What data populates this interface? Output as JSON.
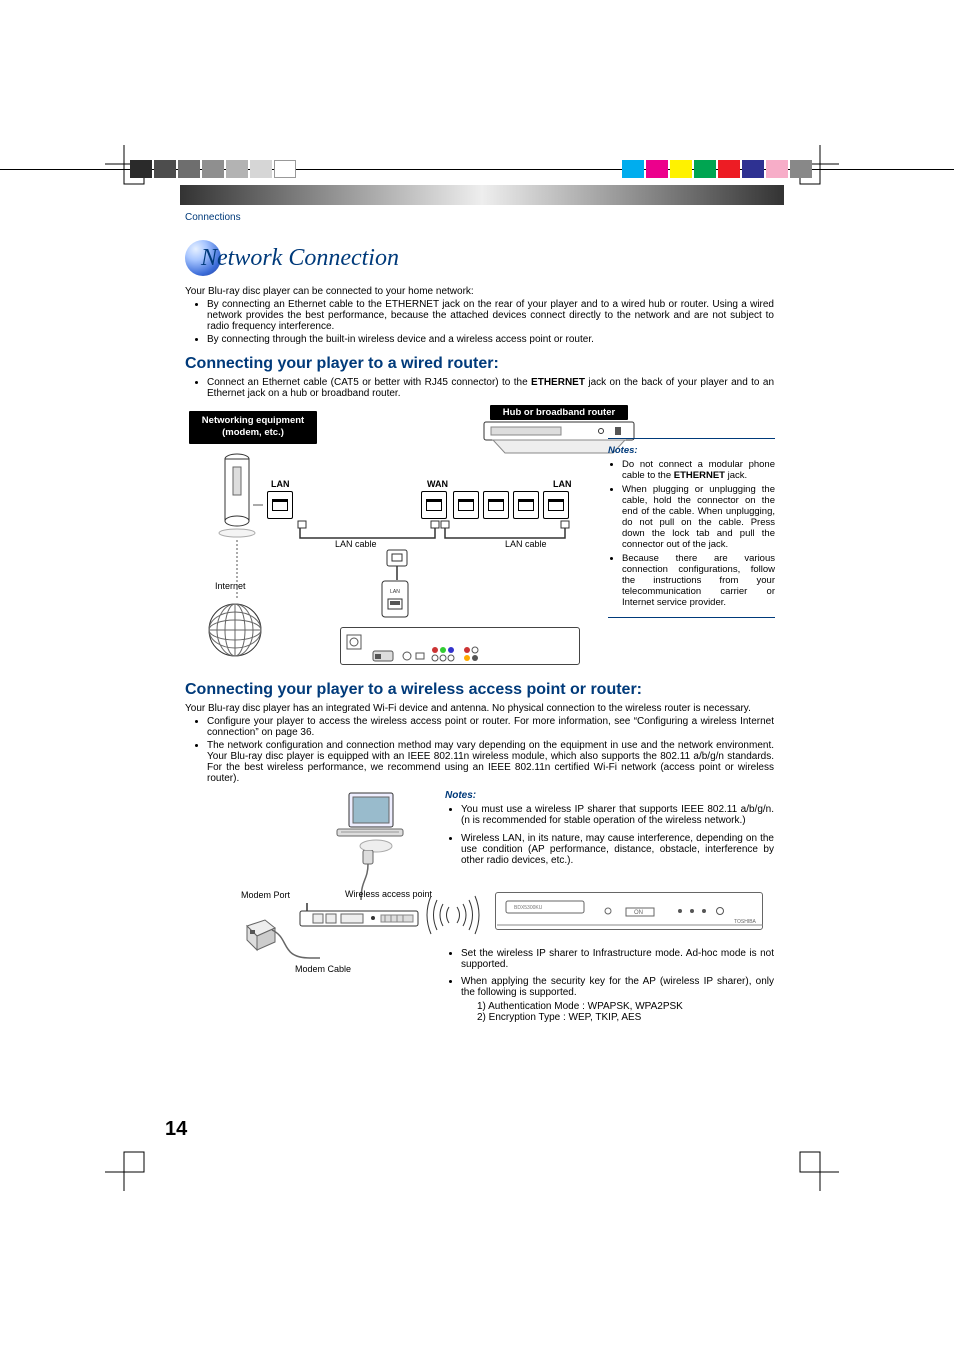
{
  "meta": {
    "page_number": "14",
    "breadcrumb": "Connections"
  },
  "colors": {
    "brand_blue": "#003a7a",
    "sphere_gradient": [
      "#e6f0ff",
      "#a8c6ff",
      "#3a6bd8",
      "#2a4aa8"
    ],
    "gray_squares": [
      "#2a2a2a",
      "#4d4d4d",
      "#6e6e6e",
      "#8f8f8f",
      "#b3b3b3",
      "#d6d6d6",
      "#ffffff"
    ],
    "color_squares": [
      "#00adee",
      "#ec008c",
      "#fff200",
      "#00a551",
      "#ed1c24",
      "#2e3192",
      "#f7adc8",
      "#888888"
    ]
  },
  "title": "Network Connection",
  "intro": {
    "lead": "Your Blu-ray disc player can be connected to your home network:",
    "bullets": [
      "By connecting an Ethernet cable to the ETHERNET jack on the rear of your player and to a wired hub or router. Using a wired network provides the best performance, because the attached devices connect directly to the network and are not subject to radio frequency interference.",
      "By connecting through the built-in wireless device and a wireless access point or router."
    ]
  },
  "wired": {
    "heading": "Connecting your player to a wired router:",
    "step_prefix": "Connect an Ethernet cable (CAT5 or better with RJ45 connector) to the ",
    "ethernet_word": "ETHERNET",
    "step_suffix": " jack on the back of your player and to an Ethernet jack on a hub or broadband router.",
    "labels": {
      "networking_equipment_l1": "Networking equipment",
      "networking_equipment_l2": "(modem, etc.)",
      "hub_router": "Hub or broadband router",
      "lan": "LAN",
      "wan": "WAN",
      "lan_cable": "LAN cable",
      "internet": "Internet"
    },
    "notes_title": "Notes:",
    "notes": [
      "Do not connect a modular phone cable to the <b>ETHERNET</b> jack.",
      "When plugging or unplugging the cable, hold the connector on the end of the cable. When unplugging, do not pull on the cable. Press down the lock tab and pull the connector out of the jack.",
      "Because there are various connection configurations, follow the instructions from your telecommunication carrier or Internet service provider."
    ]
  },
  "wireless": {
    "heading": "Connecting your player to a wireless access point or router:",
    "lead": "Your Blu-ray disc player has an integrated Wi-Fi device and antenna. No physical connection to the wireless router is necessary.",
    "bullets": [
      "Configure your player to access the wireless access point or router. For more information, see “Configuring a wireless Internet connection” on page 36.",
      "The network configuration and connection method may vary depending on the equipment in use and the network environment. Your Blu-ray disc player is equipped with an IEEE 802.11n wireless module, which also supports the 802.11 a/b/g/n standards. For the best wireless performance, we recommend using an IEEE 802.11n certified Wi-Fi network (access point or wireless router)."
    ],
    "labels": {
      "modem_port": "Modem Port",
      "wap": "Wireless access point",
      "modem_cable": "Modem Cable"
    },
    "notes_title": "Notes:",
    "notes1": [
      "You must use a wireless IP sharer that supports IEEE 802.11 a/b/g/n. (n is recommended for stable operation of the wireless network.)",
      "Wireless LAN, in its nature, may cause interference, depending on the use condition (AP performance, distance, obstacle, interference by other radio devices, etc.)."
    ],
    "notes2": [
      "Set the wireless IP sharer to Infrastructure mode. Ad-hoc mode is not supported.",
      "When applying the security key for the AP (wireless IP sharer), only the following is supported."
    ],
    "sub": [
      "1) Authentication Mode : WPAPSK, WPA2PSK",
      "2) Encryption Type : WEP, TKIP, AES"
    ]
  }
}
